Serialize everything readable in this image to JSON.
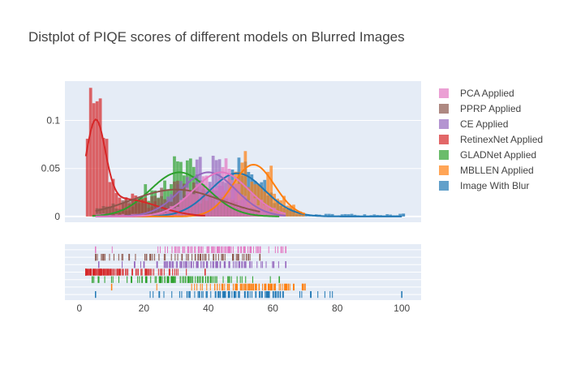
{
  "chart_data": {
    "type": "distplot",
    "title": "Distplot of PIQE scores of different models on Blurred Images",
    "xlabel": "",
    "ylabel": "",
    "x_ticks": [
      0,
      20,
      40,
      60,
      80,
      100
    ],
    "y_ticks": [
      0,
      0.05,
      0.1
    ],
    "y_tick_labels": [
      "0",
      "0.05",
      "0.1"
    ],
    "x_tick_labels": [
      "0",
      "20",
      "40",
      "60",
      "80",
      "100"
    ],
    "xlim": [
      -4.5,
      106
    ],
    "ylim": [
      -0.006,
      0.141
    ],
    "legend_position": "right",
    "grid": true,
    "series": [
      {
        "name": "PCA Applied",
        "color": "#e377c2",
        "mean": 44,
        "sd": 8.5,
        "peak": 0.046,
        "min": 5,
        "max": 64
      },
      {
        "name": "PPRP Applied",
        "color": "#8c564b",
        "mean": 30,
        "sd": 14,
        "peak": 0.028,
        "min": 5,
        "max": 56
      },
      {
        "name": "CE Applied",
        "color": "#9467bd",
        "mean": 40,
        "sd": 8.5,
        "peak": 0.046,
        "min": 6,
        "max": 64
      },
      {
        "name": "RetinexNet Applied",
        "color": "#d62728",
        "mean": 5,
        "sd": 3.0,
        "peak": 0.089,
        "min": 2,
        "max": 39,
        "tail_mean": 14,
        "tail_sd": 10,
        "tail_peak": 0.018
      },
      {
        "name": "GLADNet Applied",
        "color": "#2ca02c",
        "mean": 31,
        "sd": 9.0,
        "peak": 0.046,
        "min": 4,
        "max": 62
      },
      {
        "name": "MBLLEN Applied",
        "color": "#ff7f0e",
        "mean": 54,
        "sd": 6.5,
        "peak": 0.054,
        "min": 10,
        "max": 70
      },
      {
        "name": "Image With Blur",
        "color": "#1f77b4",
        "mean": 49,
        "sd": 8.5,
        "peak": 0.045,
        "min": 5,
        "max": 100
      }
    ]
  }
}
